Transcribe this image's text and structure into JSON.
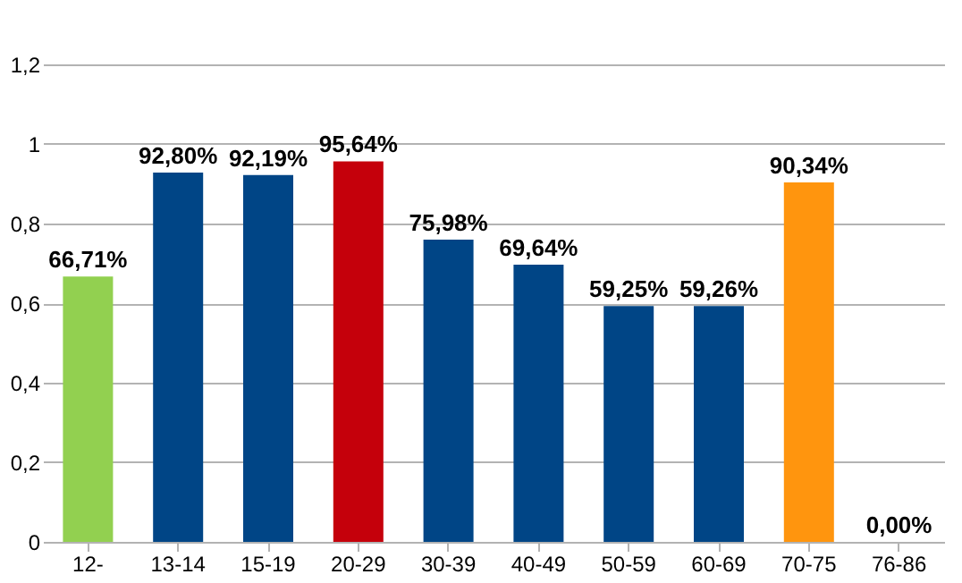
{
  "chart_data": {
    "type": "bar",
    "categories": [
      "12-",
      "13-14",
      "15-19",
      "20-29",
      "30-39",
      "40-49",
      "50-59",
      "60-69",
      "70-75",
      "76-86"
    ],
    "values": [
      0.6671,
      0.928,
      0.9219,
      0.9564,
      0.7598,
      0.6964,
      0.5925,
      0.5926,
      0.9034,
      0
    ],
    "colors": [
      "#92d050",
      "#004586",
      "#004586",
      "#c5000b",
      "#004586",
      "#004586",
      "#004586",
      "#004586",
      "#ff950e",
      "#004586"
    ],
    "value_labels": [
      "66,71%",
      "92,80%",
      "92,19%",
      "95,64%",
      "75,98%",
      "69,64%",
      "59,25%",
      "59,26%",
      "90,34%",
      "0,00%"
    ],
    "ylim": [
      0,
      1.2
    ],
    "yticks": [
      0,
      {
        "value": 0.2,
        "label": "0,2"
      },
      {
        "value": 0.4,
        "label": "0,4"
      },
      {
        "value": 0.6,
        "label": "0,6"
      },
      {
        "value": 0.8,
        "label": "0,8"
      },
      1,
      {
        "value": 1.2,
        "label": "1,2"
      }
    ],
    "grid": "y"
  }
}
